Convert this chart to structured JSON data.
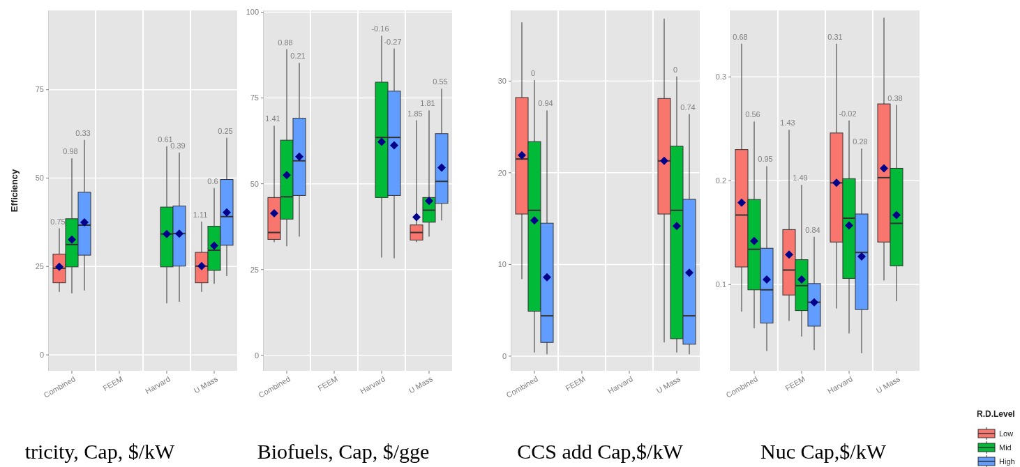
{
  "chart_data": [
    {
      "type": "box",
      "title": "tricity, Cap, $/kW",
      "ylabel": "Efficiency",
      "categories": [
        "Combined",
        "FEEM",
        "Harvard",
        "U Mass"
      ],
      "ylim": [
        -4.5,
        97.4
      ],
      "yticks": [
        0,
        25,
        50,
        75
      ],
      "grid": "y",
      "marker": "diamond",
      "series": [
        {
          "color": "#f8766d",
          "value_labels": [
            "0.75",
            null,
            null,
            "1.11"
          ],
          "boxes": [
            {
              "low": 17.8,
              "q1": 20.4,
              "median": 24.5,
              "q3": 28.5,
              "high": 35.8,
              "mean": 24.9
            },
            null,
            null,
            {
              "low": 17.8,
              "q1": 20.4,
              "median": 25.1,
              "q3": 29.0,
              "high": 37.7,
              "mean": 25.1
            }
          ]
        },
        {
          "color": "#00ba38",
          "value_labels": [
            "0.98",
            null,
            "0.61",
            "0.6"
          ],
          "boxes": [
            {
              "low": 17.4,
              "q1": 24.9,
              "median": 31.2,
              "q3": 38.5,
              "high": 55.6,
              "mean": 32.6
            },
            null,
            {
              "low": 14.6,
              "q1": 24.9,
              "median": 34.2,
              "q3": 41.8,
              "high": 59.0,
              "mean": 34.2
            },
            {
              "low": 20.1,
              "q1": 23.9,
              "median": 29.6,
              "q3": 36.4,
              "high": 47.2,
              "mean": 30.9
            }
          ]
        },
        {
          "color": "#619cff",
          "value_labels": [
            "0.33",
            null,
            "0.39",
            "0.25"
          ],
          "boxes": [
            {
              "low": 18.2,
              "q1": 28.2,
              "median": 36.7,
              "q3": 46.0,
              "high": 60.8,
              "mean": 37.5
            },
            null,
            {
              "low": 15.0,
              "q1": 25.1,
              "median": 34.3,
              "q3": 42.1,
              "high": 57.2,
              "mean": 34.3
            },
            {
              "low": 22.3,
              "q1": 31.0,
              "median": 39.1,
              "q3": 49.6,
              "high": 61.4,
              "mean": 40.3
            }
          ]
        }
      ]
    },
    {
      "type": "box",
      "title": "Biofuels, Cap, $/gge",
      "categories": [
        "Combined",
        "FEEM",
        "Harvard",
        "U Mass"
      ],
      "ylim": [
        -4.5,
        100.5
      ],
      "yticks": [
        0,
        25,
        50,
        75,
        100
      ],
      "grid": "y",
      "marker": "diamond",
      "series": [
        {
          "color": "#f8766d",
          "value_labels": [
            "1.41",
            null,
            null,
            "1.85"
          ],
          "boxes": [
            {
              "low": 33.0,
              "q1": 33.8,
              "median": 35.8,
              "q3": 46.0,
              "high": 66.9,
              "mean": 41.4
            },
            null,
            null,
            {
              "low": 33.0,
              "q1": 33.6,
              "median": 35.8,
              "q3": 38.0,
              "high": 68.5,
              "mean": 40.3
            }
          ]
        },
        {
          "color": "#00ba38",
          "value_labels": [
            "0.88",
            null,
            "-0.16",
            "1.81"
          ],
          "boxes": [
            {
              "low": 31.8,
              "q1": 39.7,
              "median": 46.2,
              "q3": 62.7,
              "high": 89.2,
              "mean": 52.5
            },
            null,
            {
              "low": 28.5,
              "q1": 46.0,
              "median": 63.5,
              "q3": 79.6,
              "high": 93.1,
              "mean": 62.2
            },
            {
              "low": 34.6,
              "q1": 38.8,
              "median": 42.3,
              "q3": 46.0,
              "high": 71.4,
              "mean": 45.0
            }
          ]
        },
        {
          "color": "#619cff",
          "value_labels": [
            "0.21",
            null,
            "-0.27",
            "0.55"
          ],
          "boxes": [
            {
              "low": 34.6,
              "q1": 46.6,
              "median": 56.7,
              "q3": 69.1,
              "high": 85.2,
              "mean": 57.9
            },
            null,
            {
              "low": 28.3,
              "q1": 46.6,
              "median": 63.5,
              "q3": 77.0,
              "high": 89.4,
              "mean": 61.2
            },
            {
              "low": 39.3,
              "q1": 44.3,
              "median": 50.7,
              "q3": 64.6,
              "high": 77.7,
              "mean": 54.7
            }
          ]
        }
      ]
    },
    {
      "type": "box",
      "title": "CCS add Cap,$/kW",
      "categories": [
        "Combined",
        "FEEM",
        "Harvard",
        "U Mass"
      ],
      "ylim": [
        -1.6,
        37.7
      ],
      "yticks": [
        0,
        10,
        20,
        30
      ],
      "grid": "y",
      "marker": "diamond",
      "series": [
        {
          "color": "#f8766d",
          "boxes": [
            {
              "low": 8.4,
              "q1": 15.5,
              "median": 21.5,
              "q3": 28.2,
              "high": 36.4,
              "mean": 21.9
            },
            null,
            null,
            {
              "low": 1.5,
              "q1": 15.5,
              "median": 21.3,
              "q3": 28.1,
              "high": 36.8,
              "mean": 21.3
            }
          ]
        },
        {
          "color": "#00ba38",
          "value_labels": [
            "0",
            null,
            null,
            "0"
          ],
          "boxes": [
            {
              "low": 0.4,
              "q1": 4.9,
              "median": 15.9,
              "q3": 23.4,
              "high": 30.1,
              "mean": 14.8
            },
            null,
            null,
            {
              "low": 0.4,
              "q1": 1.9,
              "median": 15.9,
              "q3": 22.9,
              "high": 30.5,
              "mean": 14.2
            }
          ]
        },
        {
          "color": "#619cff",
          "value_labels": [
            "0.94",
            null,
            null,
            "0.74"
          ],
          "boxes": [
            {
              "low": 0.2,
              "q1": 1.5,
              "median": 4.4,
              "q3": 14.5,
              "high": 26.8,
              "mean": 8.6
            },
            null,
            null,
            {
              "low": 0.2,
              "q1": 1.3,
              "median": 4.4,
              "q3": 17.1,
              "high": 26.4,
              "mean": 9.1
            }
          ]
        }
      ]
    },
    {
      "type": "box",
      "title": "Nuc Cap,$/kW",
      "categories": [
        "Combined",
        "FEEM",
        "Harvard",
        "U Mass"
      ],
      "ylim": [
        0.017,
        0.364
      ],
      "yticks": [
        0.1,
        0.2,
        0.3
      ],
      "grid": "y",
      "marker": "diamond",
      "legend": "right",
      "legend_title": "R.D.Level",
      "series": [
        {
          "name": "Low",
          "color": "#f8766d",
          "value_labels": [
            "0.68",
            "1.43",
            "0.31",
            null
          ],
          "boxes": [
            {
              "low": 0.074,
              "q1": 0.117,
              "median": 0.167,
              "q3": 0.23,
              "high": 0.332,
              "mean": 0.179
            },
            {
              "low": 0.065,
              "q1": 0.09,
              "median": 0.114,
              "q3": 0.153,
              "high": 0.249,
              "mean": 0.129
            },
            {
              "low": 0.077,
              "q1": 0.141,
              "median": 0.198,
              "q3": 0.246,
              "high": 0.332,
              "mean": 0.198
            },
            {
              "low": 0.104,
              "q1": 0.141,
              "median": 0.203,
              "q3": 0.274,
              "high": 0.357,
              "mean": 0.212
            }
          ]
        },
        {
          "name": "Mid",
          "color": "#00ba38",
          "value_labels": [
            "0.56",
            "1.49",
            "-0.02",
            "0.38"
          ],
          "boxes": [
            {
              "low": 0.058,
              "q1": 0.095,
              "median": 0.134,
              "q3": 0.182,
              "high": 0.257,
              "mean": 0.142
            },
            {
              "low": 0.05,
              "q1": 0.075,
              "median": 0.099,
              "q3": 0.124,
              "high": 0.196,
              "mean": 0.105
            },
            {
              "low": 0.053,
              "q1": 0.106,
              "median": 0.164,
              "q3": 0.202,
              "high": 0.258,
              "mean": 0.157
            },
            {
              "low": 0.084,
              "q1": 0.118,
              "median": 0.159,
              "q3": 0.212,
              "high": 0.273,
              "mean": 0.167
            }
          ]
        },
        {
          "name": "High",
          "color": "#619cff",
          "value_labels": [
            "0.95",
            "0.84",
            "0.28",
            null
          ],
          "boxes": [
            {
              "low": 0.036,
              "q1": 0.063,
              "median": 0.095,
              "q3": 0.135,
              "high": 0.214,
              "mean": 0.105
            },
            {
              "low": 0.037,
              "q1": 0.06,
              "median": 0.083,
              "q3": 0.101,
              "high": 0.146,
              "mean": 0.083
            },
            {
              "low": 0.034,
              "q1": 0.076,
              "median": 0.131,
              "q3": 0.168,
              "high": 0.231,
              "mean": 0.127
            },
            null
          ]
        }
      ]
    }
  ]
}
